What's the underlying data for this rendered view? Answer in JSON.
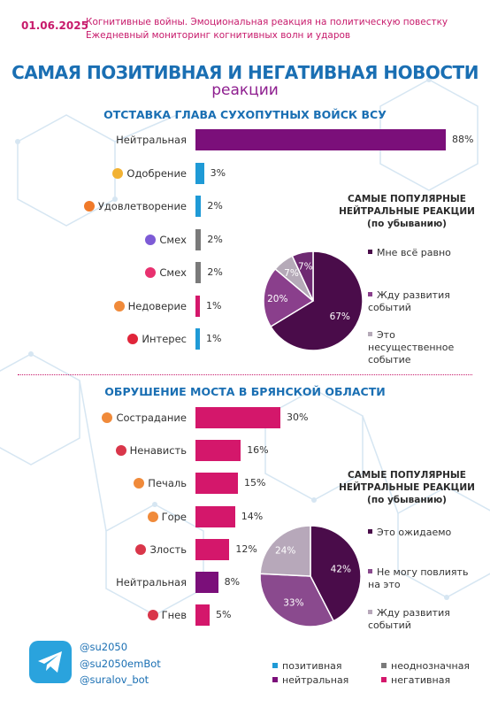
{
  "header": {
    "date": "01.06.2025",
    "line1": "Когнитивные войны. Эмоциональная реакция на политическую повестку",
    "line2": "Ежедневный мониторинг когнитивных волн и ударов"
  },
  "title": {
    "main": "САМАЯ ПОЗИТИВНАЯ И НЕГАТИВНАЯ НОВОСТИ",
    "sub": "реакции"
  },
  "colors": {
    "positive": "#1f9ad6",
    "ambiguous": "#7a7a7a",
    "neutral": "#7b0f7a",
    "negative": "#d4176b"
  },
  "chart_data": [
    {
      "type": "bar",
      "title": "ОТСТАВКА ГЛАВА СУХОПУТНЫХ ВОЙСК ВСУ",
      "orientation": "horizontal",
      "categories": [
        "Нейтральная",
        "Одобрение",
        "Удовлетворение",
        "Смех",
        "Смех",
        "Недоверие",
        "Интерес"
      ],
      "values": [
        88,
        3,
        2,
        2,
        2,
        1,
        1
      ],
      "value_labels": [
        "88%",
        "3%",
        "2%",
        "2%",
        "2%",
        "1%",
        "1%"
      ],
      "bar_colors": [
        "#7b0f7a",
        "#1f9ad6",
        "#1f9ad6",
        "#7a7a7a",
        "#7a7a7a",
        "#d4176b",
        "#1f9ad6"
      ],
      "icons": [
        "",
        "handshake-icon",
        "smile-icon",
        "laugh-icon",
        "grin-icon",
        "doubt-icon",
        "question-icon"
      ]
    },
    {
      "type": "pie",
      "title_lines": [
        "САМЫЕ ПОПУЛЯРНЫЕ",
        "НЕЙТРАЛЬНЫЕ РЕАКЦИИ",
        "(по убыванию)"
      ],
      "labels": [
        "Мне всё равно",
        "Жду развития событий",
        "Это несущественное событие",
        ""
      ],
      "values": [
        67,
        20,
        7,
        7
      ],
      "value_labels": [
        "67%",
        "20%",
        "7%",
        "7%"
      ],
      "colors": [
        "#4a0c4a",
        "#8a3f8c",
        "#b5aab8",
        "#6e2a72"
      ]
    },
    {
      "type": "bar",
      "title": "ОБРУШЕНИЕ МОСТА В БРЯНСКОЙ ОБЛАСТИ",
      "orientation": "horizontal",
      "categories": [
        "Сострадание",
        "Ненависть",
        "Печаль",
        "Горе",
        "Злость",
        "Нейтральная",
        "Гнев"
      ],
      "values": [
        30,
        16,
        15,
        14,
        12,
        8,
        5
      ],
      "value_labels": [
        "30%",
        "16%",
        "15%",
        "14%",
        "12%",
        "8%",
        "5%"
      ],
      "bar_colors": [
        "#d4176b",
        "#d4176b",
        "#d4176b",
        "#d4176b",
        "#d4176b",
        "#7b0f7a",
        "#d4176b"
      ],
      "icons": [
        "sad-icon",
        "angry-icon",
        "sad-icon",
        "sad-icon",
        "angry-icon",
        "",
        "angry-icon"
      ]
    },
    {
      "type": "pie",
      "title_lines": [
        "САМЫЕ ПОПУЛЯРНЫЕ",
        "НЕЙТРАЛЬНЫЕ РЕАКЦИИ",
        "(по убыванию)"
      ],
      "labels": [
        "Это ожидаемо",
        "Не могу повлиять на это",
        "Жду развития событий"
      ],
      "values": [
        42,
        33,
        24
      ],
      "value_labels": [
        "42%",
        "33%",
        "24%"
      ],
      "colors": [
        "#4a0c4a",
        "#8a4a8e",
        "#b7a8ba"
      ]
    }
  ],
  "contacts": [
    "@su2050",
    "@su2050emBot",
    "@suralov_bot"
  ],
  "bottom_legend": {
    "positive": "позитивная",
    "ambiguous": "неоднозначная",
    "neutral": "нейтральная",
    "negative": "негативная"
  }
}
